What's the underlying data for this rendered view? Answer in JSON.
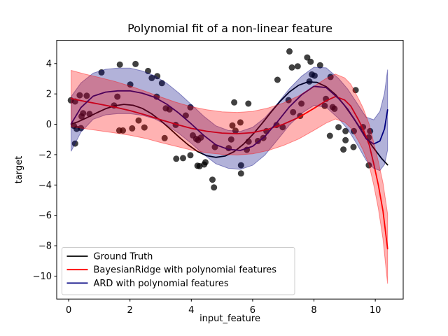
{
  "figure": {
    "background": "#ffffff"
  },
  "chart_data": {
    "type": "line",
    "title": "Polynomial fit of a non-linear feature",
    "xlabel": "input_feature",
    "ylabel": "target",
    "xlim": [
      -0.39,
      10.91
    ],
    "ylim": [
      -11.51,
      5.53
    ],
    "grid": false,
    "legend": {
      "location": "lower left"
    },
    "xticks": {
      "values": [
        0,
        2,
        4,
        6,
        8,
        10
      ],
      "labels": [
        "0",
        "2",
        "4",
        "6",
        "8",
        "10"
      ]
    },
    "yticks": {
      "values": [
        4,
        2,
        0,
        -2,
        -4,
        -6,
        -8,
        -10
      ],
      "labels": [
        "4",
        "2",
        "0",
        "−2",
        "−4",
        "−6",
        "−8",
        "−10"
      ]
    },
    "scatter": {
      "name": "observations",
      "color": "#000000",
      "alpha": 0.75,
      "marker_radius": 4.5,
      "points": [
        [
          0.07,
          1.58
        ],
        [
          0.17,
          -0.1
        ],
        [
          0.21,
          1.5
        ],
        [
          0.21,
          -1.27
        ],
        [
          0.26,
          -0.3
        ],
        [
          0.36,
          1.91
        ],
        [
          0.4,
          -0.25
        ],
        [
          0.42,
          0.52
        ],
        [
          0.47,
          0.73
        ],
        [
          0.59,
          1.88
        ],
        [
          0.68,
          0.68
        ],
        [
          1.07,
          3.42
        ],
        [
          1.48,
          1.24
        ],
        [
          1.59,
          1.82
        ],
        [
          1.65,
          -0.41
        ],
        [
          1.67,
          3.93
        ],
        [
          1.77,
          -0.41
        ],
        [
          2.01,
          2.62
        ],
        [
          2.07,
          -0.27
        ],
        [
          2.18,
          3.97
        ],
        [
          2.28,
          0.25
        ],
        [
          2.47,
          -0.21
        ],
        [
          2.59,
          3.51
        ],
        [
          2.71,
          3.05
        ],
        [
          2.87,
          1.82
        ],
        [
          2.89,
          3.17
        ],
        [
          3.04,
          2.71
        ],
        [
          3.13,
          -0.91
        ],
        [
          3.17,
          1.05
        ],
        [
          3.29,
          0.98
        ],
        [
          3.49,
          -0.04
        ],
        [
          3.51,
          -2.27
        ],
        [
          3.73,
          -2.23
        ],
        [
          3.82,
          0.58
        ],
        [
          3.97,
          1.12
        ],
        [
          3.97,
          -2.04
        ],
        [
          4.05,
          -0.73
        ],
        [
          4.16,
          -0.96
        ],
        [
          4.2,
          -2.73
        ],
        [
          4.22,
          -1.04
        ],
        [
          4.27,
          -2.76
        ],
        [
          4.31,
          -0.88
        ],
        [
          4.42,
          -2.65
        ],
        [
          4.46,
          -2.5
        ],
        [
          4.69,
          -3.65
        ],
        [
          4.74,
          -4.16
        ],
        [
          4.77,
          -1.5
        ],
        [
          5.22,
          -1.57
        ],
        [
          5.3,
          -1.0
        ],
        [
          5.34,
          -0.08
        ],
        [
          5.4,
          1.44
        ],
        [
          5.44,
          -0.42
        ],
        [
          5.6,
          0.12
        ],
        [
          5.62,
          -2.7
        ],
        [
          5.62,
          -3.24
        ],
        [
          5.81,
          -1.68
        ],
        [
          5.86,
          1.36
        ],
        [
          5.87,
          -1.14
        ],
        [
          6.17,
          -1.1
        ],
        [
          6.35,
          -0.9
        ],
        [
          6.45,
          -0.45
        ],
        [
          6.78,
          -0.05
        ],
        [
          6.81,
          2.93
        ],
        [
          6.98,
          -0.19
        ],
        [
          7.17,
          1.59
        ],
        [
          7.2,
          4.8
        ],
        [
          7.28,
          3.74
        ],
        [
          7.32,
          0.8
        ],
        [
          7.47,
          3.82
        ],
        [
          7.55,
          0.55
        ],
        [
          7.59,
          1.36
        ],
        [
          7.78,
          4.4
        ],
        [
          7.85,
          2.82
        ],
        [
          7.89,
          4.12
        ],
        [
          7.93,
          3.28
        ],
        [
          8.02,
          3.2
        ],
        [
          8.2,
          3.89
        ],
        [
          8.35,
          1.21
        ],
        [
          8.39,
          1.67
        ],
        [
          8.52,
          -0.76
        ],
        [
          8.54,
          3.12
        ],
        [
          8.61,
          1.13
        ],
        [
          8.67,
          1.02
        ],
        [
          8.8,
          -0.19
        ],
        [
          8.96,
          -1.66
        ],
        [
          9.03,
          -0.45
        ],
        [
          9.03,
          -1.05
        ],
        [
          9.29,
          -1.5
        ],
        [
          9.3,
          -0.45
        ],
        [
          9.36,
          2.25
        ],
        [
          9.6,
          -0.18
        ],
        [
          9.79,
          -0.87
        ],
        [
          9.79,
          -2.7
        ],
        [
          9.83,
          -0.45
        ]
      ]
    },
    "series": [
      {
        "name": "Ground Truth",
        "color": "#000000",
        "x": [
          0.08,
          0.3,
          0.6,
          0.9,
          1.2,
          1.5,
          1.8,
          2.1,
          2.4,
          2.7,
          3.0,
          3.3,
          3.6,
          3.9,
          4.2,
          4.5,
          4.8,
          5.1,
          5.4,
          5.7,
          6.0,
          6.3,
          6.6,
          6.9,
          7.2,
          7.5,
          7.8,
          8.1,
          8.4,
          8.7,
          9.0,
          9.3,
          9.6,
          9.9,
          10.2,
          10.4
        ],
        "y": [
          0.02,
          0.16,
          0.44,
          0.74,
          1.02,
          1.22,
          1.31,
          1.25,
          1.05,
          0.7,
          0.24,
          -0.29,
          -0.84,
          -1.36,
          -1.79,
          -2.07,
          -2.18,
          -2.09,
          -1.8,
          -1.31,
          -0.68,
          0.04,
          0.8,
          1.52,
          2.13,
          2.57,
          2.79,
          2.76,
          2.48,
          1.96,
          1.24,
          0.38,
          -0.54,
          -1.44,
          -2.24,
          -2.67
        ]
      },
      {
        "name": "BayesianRidge with polynomial features",
        "color": "#ff0000",
        "band_alpha": 0.3,
        "x": [
          0.08,
          0.5,
          1.0,
          1.5,
          2.0,
          2.5,
          3.0,
          3.5,
          4.0,
          4.5,
          5.0,
          5.5,
          6.0,
          6.5,
          7.0,
          7.5,
          8.0,
          8.4,
          8.7,
          9.0,
          9.2,
          9.45,
          9.6,
          9.8,
          9.95,
          10.1,
          10.25,
          10.4
        ],
        "y": [
          1.7,
          1.52,
          1.33,
          1.13,
          0.9,
          0.62,
          0.3,
          0.0,
          -0.27,
          -0.46,
          -0.58,
          -0.62,
          -0.55,
          -0.33,
          0.0,
          0.45,
          1.05,
          1.55,
          1.83,
          1.6,
          1.2,
          0.3,
          -0.3,
          -1.35,
          -2.6,
          -4.0,
          -5.7,
          -8.2
        ],
        "std": [
          1.85,
          1.8,
          1.75,
          1.7,
          1.62,
          1.55,
          1.5,
          1.45,
          1.43,
          1.42,
          1.4,
          1.4,
          1.4,
          1.4,
          1.4,
          1.42,
          1.45,
          1.47,
          1.48,
          1.46,
          1.44,
          1.4,
          1.38,
          1.35,
          1.4,
          1.55,
          1.85,
          2.3
        ]
      },
      {
        "name": "ARD with polynomial features",
        "color": "#000080",
        "band_alpha": 0.3,
        "x": [
          0.08,
          0.4,
          0.8,
          1.2,
          1.6,
          2.0,
          2.4,
          2.8,
          3.2,
          3.6,
          4.0,
          4.4,
          4.8,
          5.2,
          5.6,
          6.0,
          6.4,
          6.8,
          7.2,
          7.6,
          8.0,
          8.4,
          8.8,
          9.1,
          9.4,
          9.7,
          9.95,
          10.15,
          10.3,
          10.4
        ],
        "y": [
          0.02,
          1.1,
          1.85,
          2.12,
          2.2,
          2.2,
          2.05,
          1.78,
          1.32,
          0.72,
          0.02,
          -0.72,
          -1.35,
          -1.65,
          -1.72,
          -1.45,
          -0.8,
          0.15,
          1.15,
          1.95,
          2.5,
          2.42,
          1.7,
          1.0,
          0.05,
          -0.95,
          -1.3,
          -1.1,
          -0.3,
          0.95
        ],
        "std": [
          1.8,
          1.62,
          1.52,
          1.5,
          1.5,
          1.5,
          1.46,
          1.42,
          1.38,
          1.33,
          1.28,
          1.26,
          1.25,
          1.25,
          1.25,
          1.25,
          1.23,
          1.2,
          1.2,
          1.22,
          1.26,
          1.3,
          1.32,
          1.32,
          1.35,
          1.42,
          1.6,
          1.95,
          2.35,
          2.65
        ]
      }
    ]
  }
}
